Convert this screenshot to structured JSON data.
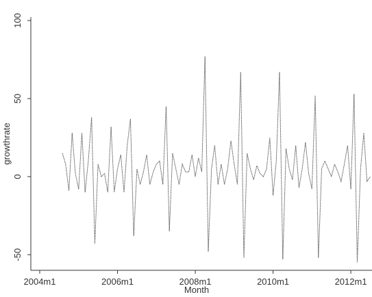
{
  "chart_data": {
    "type": "line",
    "x_label": "Month",
    "y_label": "growthrate",
    "categories": [
      "2004m1",
      null,
      null,
      null,
      null,
      null,
      null,
      null,
      null,
      null,
      null,
      null,
      null,
      null,
      null,
      null,
      null,
      null,
      null,
      null,
      null,
      null,
      null,
      null,
      "2006m1",
      null,
      null,
      null,
      null,
      null,
      null,
      null,
      null,
      null,
      null,
      null,
      null,
      null,
      null,
      null,
      null,
      null,
      null,
      null,
      null,
      null,
      null,
      null,
      "2008m1",
      null,
      null,
      null,
      null,
      null,
      null,
      null,
      null,
      null,
      null,
      null,
      null,
      null,
      null,
      null,
      null,
      null,
      null,
      null,
      null,
      null,
      null,
      null,
      "2010m1",
      null,
      null,
      null,
      null,
      null,
      null,
      null,
      null,
      null,
      null,
      null,
      null,
      null,
      null,
      null,
      null,
      null,
      null,
      null,
      null,
      null,
      null,
      null,
      "2012m1",
      null,
      null,
      null,
      null,
      null,
      null
    ],
    "series": [
      {
        "name": "growthrate",
        "color": "#555555",
        "values": [
          null,
          null,
          null,
          null,
          null,
          null,
          null,
          15,
          8,
          -9,
          28,
          2,
          -8,
          28,
          -10,
          10,
          38,
          -43,
          8,
          0,
          2,
          -10,
          32,
          -10,
          5,
          14,
          -10,
          20,
          37,
          -38,
          5,
          -5,
          3,
          14,
          -5,
          3,
          8,
          10,
          -5,
          45,
          -35,
          15,
          5,
          -5,
          8,
          3,
          3,
          14,
          0,
          12,
          3,
          77,
          -48,
          5,
          20,
          -5,
          8,
          -5,
          5,
          23,
          8,
          -5,
          67,
          -52,
          15,
          5,
          -2,
          7,
          2,
          0,
          5,
          25,
          -12,
          10,
          67,
          -53,
          18,
          5,
          -2,
          20,
          -7,
          5,
          22,
          2,
          -8,
          52,
          -52,
          5,
          10,
          5,
          0,
          8,
          3,
          -3,
          8,
          20,
          -8,
          53,
          -55,
          5,
          28,
          -3,
          0
        ]
      }
    ],
    "ylim": [
      -60,
      100
    ],
    "yticks": [
      -50,
      0,
      50,
      100
    ],
    "grid": false
  }
}
